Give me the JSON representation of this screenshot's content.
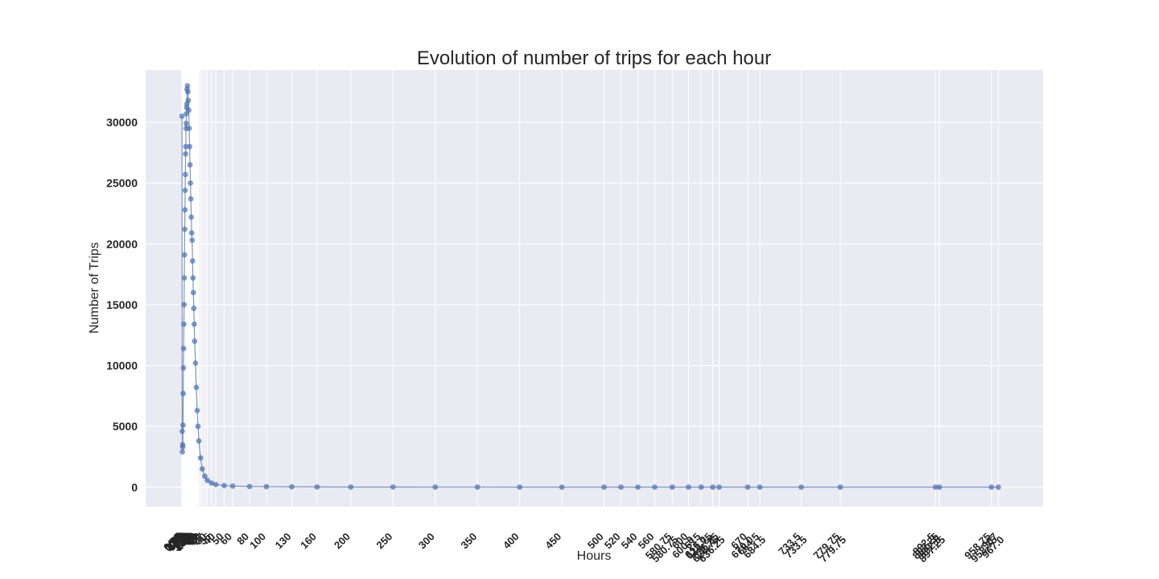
{
  "chart_data": {
    "type": "line",
    "title": "Evolution of number of trips for each hour",
    "xlabel": "Hours",
    "ylabel": "Number of Trips",
    "xlim": [
      -43,
      1020
    ],
    "ylim": [
      -1600,
      34300
    ],
    "yticks": [
      0,
      5000,
      10000,
      15000,
      20000,
      25000,
      30000
    ],
    "ytick_labels": [
      "0",
      "5000",
      "10000",
      "15000",
      "20000",
      "25000",
      "30000"
    ],
    "xtick_labels_readable": [
      {
        "x": 580.75,
        "label": "580.75"
      },
      {
        "x": 600.0,
        "label": "600.0"
      },
      {
        "x": 615.0,
        "label": "615.0"
      },
      {
        "x": 628.75,
        "label": "628.75"
      },
      {
        "x": 636.25,
        "label": "636.25"
      },
      {
        "x": 670.0,
        "label": "670.0"
      },
      {
        "x": 684.5,
        "label": "684.5"
      },
      {
        "x": 733.5,
        "label": "733.5"
      },
      {
        "x": 779.75,
        "label": "779.75"
      },
      {
        "x": 892.5,
        "label": "892.5"
      },
      {
        "x": 897.25,
        "label": "897.25"
      },
      {
        "x": 958.75,
        "label": "958.75"
      },
      {
        "x": 967.0,
        "label": "967.0"
      }
    ],
    "grid": true,
    "legend": "none",
    "line_color": "#4c72b0",
    "background_color": "#eaeaf2",
    "series": [
      {
        "x": [
          0,
          0.25,
          0.5,
          0.75,
          1,
          1.25,
          1.5,
          1.75,
          2,
          2.25,
          2.5,
          2.75,
          3,
          3.25,
          3.5,
          3.75,
          4,
          4.25,
          4.5,
          4.75,
          5,
          5.25,
          5.5,
          5.75,
          6,
          6.5,
          7,
          7.5,
          8,
          8.5,
          9,
          9.5,
          10,
          10.5,
          11,
          11.5,
          12,
          12.5,
          13,
          13.5,
          14,
          14.5,
          15,
          16,
          17,
          18,
          19,
          20,
          22,
          24,
          27,
          30,
          35,
          40,
          50,
          60,
          80,
          100,
          130,
          160,
          200,
          250,
          300,
          350,
          400,
          450,
          500,
          520,
          540,
          560,
          580.75,
          600,
          615,
          628.75,
          636.25,
          670,
          684.5,
          733.5,
          779.75,
          892.5,
          897.25,
          958.75,
          967
        ],
        "y": [
          30500,
          4600,
          2900,
          3500,
          3300,
          5100,
          7700,
          9800,
          11400,
          13400,
          15000,
          17200,
          19100,
          21200,
          22800,
          24400,
          25700,
          27400,
          28000,
          29500,
          29900,
          30700,
          31200,
          31500,
          32700,
          33000,
          32500,
          31800,
          31000,
          29500,
          28000,
          26500,
          25000,
          23700,
          22200,
          20900,
          20300,
          18600,
          17200,
          16000,
          14700,
          13400,
          12000,
          10200,
          8200,
          6300,
          5000,
          3800,
          2400,
          1500,
          900,
          560,
          340,
          220,
          130,
          90,
          55,
          40,
          28,
          20,
          14,
          10,
          8,
          6,
          5,
          4,
          3,
          3,
          2,
          2,
          1,
          1,
          1,
          1,
          1,
          1,
          1,
          1,
          1,
          1,
          1,
          1,
          1
        ]
      }
    ]
  }
}
